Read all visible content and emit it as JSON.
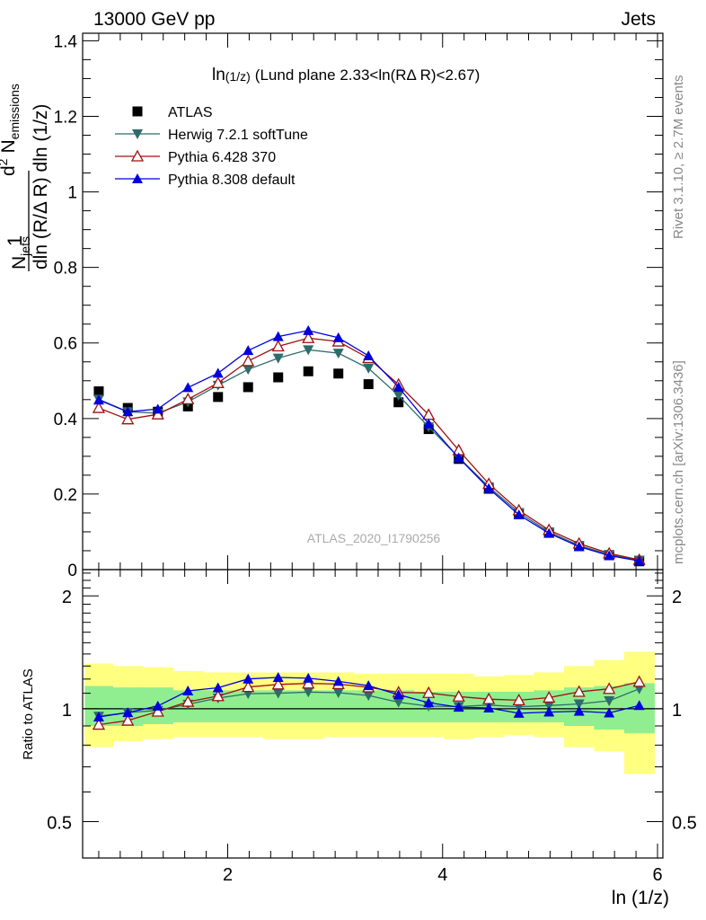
{
  "header": {
    "left": "13000 GeV pp",
    "right": "Jets"
  },
  "side_labels": {
    "rivet": "Rivet 3.1.10, ≥ 2.7M events",
    "mcplots": "mcplots.cern.ch [arXiv:1306.3436]"
  },
  "watermark": "ATLAS_2020_I1790256",
  "chart_data": {
    "type": "scatter",
    "title": "ln(1/z) (Lund plane 2.33<ln(RΔ R)<2.67)",
    "title_parts": {
      "main": "ln",
      "sub": "(1/z)",
      "rest": "(Lund plane 2.33<ln(RΔ R)<2.67)"
    },
    "xlabel": "ln (1/z)",
    "ylabel": "1/N_jets d²N_emissions / dln(R/ΔR) dln(1/z)",
    "ylabel_parts": {
      "one": "1",
      "N": "N",
      "N_sub": "jets",
      "d2": "d",
      "d2_sup": "2",
      "N2": "N",
      "N2_sub": "emissions",
      "denom_left": "dln (R/Δ R) dln (1/z)"
    },
    "xlim": [
      0.65,
      6.05
    ],
    "ylim": [
      0,
      1.42
    ],
    "xticks": [
      2,
      4,
      6
    ],
    "yticks": [
      0,
      0.2,
      0.4,
      0.6,
      0.8,
      1,
      1.2,
      1.4
    ],
    "ytick_labels": [
      "0",
      "0.2",
      "0.4",
      "0.6",
      "0.8",
      "1",
      "1.2",
      "1.4"
    ],
    "legend_position": "top-left",
    "x": [
      0.8,
      1.07,
      1.35,
      1.63,
      1.91,
      2.19,
      2.47,
      2.75,
      3.03,
      3.31,
      3.59,
      3.87,
      4.15,
      4.43,
      4.71,
      4.99,
      5.27,
      5.55,
      5.83
    ],
    "bin_edges": [
      0.67,
      0.93,
      1.21,
      1.49,
      1.77,
      2.05,
      2.33,
      2.61,
      2.89,
      3.17,
      3.45,
      3.73,
      4.01,
      4.29,
      4.57,
      4.85,
      5.13,
      5.41,
      5.69,
      5.97
    ],
    "series": [
      {
        "name": "ATLAS",
        "color": "#000000",
        "marker": "square",
        "values": [
          0.472,
          0.428,
          0.418,
          0.432,
          0.457,
          0.483,
          0.509,
          0.525,
          0.519,
          0.491,
          0.443,
          0.372,
          0.293,
          0.214,
          0.149,
          0.098,
          0.062,
          0.038,
          0.022
        ]
      },
      {
        "name": "Herwig 7.2.1 softTune",
        "color": "#2e6b6b",
        "marker": "triangle-down",
        "values": [
          0.451,
          0.418,
          0.414,
          0.444,
          0.488,
          0.53,
          0.56,
          0.582,
          0.573,
          0.533,
          0.461,
          0.378,
          0.297,
          0.219,
          0.151,
          0.1,
          0.064,
          0.04,
          0.025
        ]
      },
      {
        "name": "Pythia 6.428 370",
        "color": "#a01010",
        "marker": "triangle-up-open",
        "values": [
          0.428,
          0.398,
          0.411,
          0.451,
          0.494,
          0.552,
          0.591,
          0.613,
          0.604,
          0.56,
          0.49,
          0.41,
          0.316,
          0.227,
          0.157,
          0.105,
          0.069,
          0.043,
          0.026
        ]
      },
      {
        "name": "Pythia 8.308 default",
        "color": "#0000dd",
        "marker": "triangle-up",
        "values": [
          0.449,
          0.418,
          0.425,
          0.482,
          0.52,
          0.58,
          0.617,
          0.633,
          0.614,
          0.566,
          0.483,
          0.386,
          0.296,
          0.215,
          0.145,
          0.096,
          0.061,
          0.037,
          0.023
        ]
      }
    ],
    "ratio": {
      "ylabel": "Ratio to ATLAS",
      "ylim": [
        0.4,
        2.35
      ],
      "log_scale": true,
      "yticks": [
        0.5,
        1,
        2
      ],
      "ytick_labels": [
        "0.5",
        "1",
        "2"
      ],
      "band_outer": {
        "color": "#ffff80",
        "lo": [
          0.79,
          0.82,
          0.83,
          0.84,
          0.84,
          0.84,
          0.83,
          0.83,
          0.84,
          0.84,
          0.84,
          0.84,
          0.83,
          0.84,
          0.85,
          0.84,
          0.79,
          0.77,
          0.67
        ],
        "hi": [
          1.32,
          1.3,
          1.29,
          1.26,
          1.25,
          1.25,
          1.25,
          1.25,
          1.25,
          1.24,
          1.24,
          1.24,
          1.24,
          1.22,
          1.23,
          1.25,
          1.3,
          1.35,
          1.42
        ]
      },
      "band_inner": {
        "color": "#90ee90",
        "lo": [
          0.9,
          0.9,
          0.91,
          0.92,
          0.92,
          0.92,
          0.92,
          0.92,
          0.92,
          0.92,
          0.92,
          0.92,
          0.92,
          0.92,
          0.92,
          0.92,
          0.9,
          0.88,
          0.86
        ],
        "hi": [
          1.15,
          1.14,
          1.14,
          1.12,
          1.12,
          1.12,
          1.12,
          1.12,
          1.12,
          1.12,
          1.12,
          1.11,
          1.11,
          1.11,
          1.11,
          1.12,
          1.14,
          1.15,
          1.17
        ]
      },
      "series": [
        {
          "name": "Herwig 7.2.1 softTune",
          "values": [
            0.955,
            0.977,
            0.99,
            1.028,
            1.068,
            1.097,
            1.1,
            1.108,
            1.104,
            1.085,
            1.041,
            1.016,
            1.014,
            1.023,
            1.013,
            1.02,
            1.03,
            1.05,
            1.13
          ]
        },
        {
          "name": "Pythia 6.428 370",
          "values": [
            0.907,
            0.93,
            0.983,
            1.044,
            1.081,
            1.143,
            1.161,
            1.168,
            1.164,
            1.141,
            1.106,
            1.102,
            1.078,
            1.061,
            1.054,
            1.071,
            1.11,
            1.13,
            1.18
          ]
        },
        {
          "name": "Pythia 8.308 default",
          "values": [
            0.951,
            0.977,
            1.017,
            1.116,
            1.138,
            1.201,
            1.212,
            1.206,
            1.183,
            1.153,
            1.09,
            1.038,
            1.01,
            1.005,
            0.973,
            0.98,
            0.985,
            0.975,
            1.02
          ]
        }
      ]
    }
  }
}
